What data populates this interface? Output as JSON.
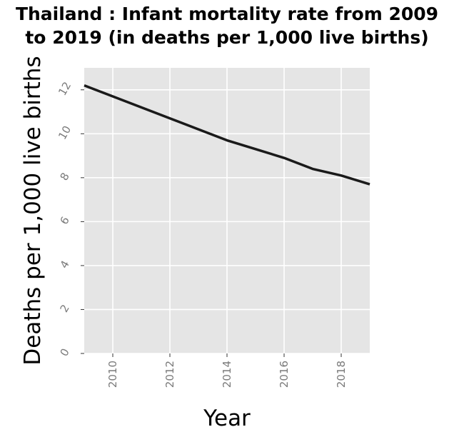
{
  "chart_data": {
    "type": "line",
    "title": [
      "Thailand : Infant mortality rate from 2009",
      "to 2019 (in deaths per 1,000 live births)"
    ],
    "xlabel": "Year",
    "ylabel": "Deaths per 1,000 live births",
    "xlim": [
      2009,
      2019
    ],
    "ylim": [
      0,
      13
    ],
    "xticks": [
      2010,
      2012,
      2014,
      2016,
      2018
    ],
    "yticks": [
      0,
      2,
      4,
      6,
      8,
      10,
      12
    ],
    "grid": true,
    "series": [
      {
        "x": [
          2009,
          2010,
          2011,
          2012,
          2013,
          2014,
          2015,
          2016,
          2017,
          2018,
          2019
        ],
        "values": [
          12.2,
          11.7,
          11.2,
          10.7,
          10.2,
          9.7,
          9.3,
          8.9,
          8.4,
          8.1,
          7.7
        ],
        "color": "#1a1a1a"
      }
    ],
    "colors": {
      "panel": "#e5e5e5",
      "grid": "#ffffff",
      "line": "#1a1a1a",
      "tick_text": "#7a7a7a"
    }
  }
}
